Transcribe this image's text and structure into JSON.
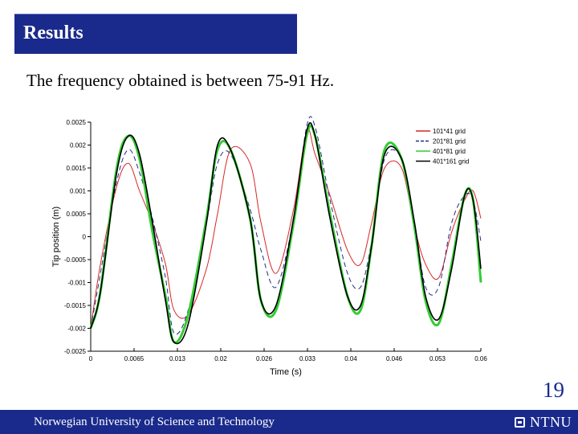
{
  "slide": {
    "title": "Results",
    "subtitle": "The frequency obtained is between 75-91 Hz.",
    "page_number": "19"
  },
  "footer": {
    "text": "Norwegian University of Science and Technology",
    "logo_text": "NTNU"
  },
  "colors": {
    "brand": "#1a2a8c",
    "text": "#000000",
    "background": "#ffffff"
  },
  "chart_data": {
    "type": "line",
    "title": "",
    "xlabel": "Time (s)",
    "ylabel": "Tip position (m)",
    "xlim": [
      0,
      0.06
    ],
    "ylim": [
      -0.0025,
      0.0025
    ],
    "x_ticks": [
      "0",
      "0.0065",
      "0.013",
      "0.02",
      "0.026",
      "0.033",
      "0.04",
      "0.046",
      "0.053",
      "0.06"
    ],
    "y_ticks": [
      "0.0025",
      "0.002",
      "0.0015",
      "0.001",
      "0.0005",
      "0",
      "-0.0005",
      "-0.001",
      "-0.0015",
      "-0.002",
      "-0.0025"
    ],
    "grid": false,
    "legend_position": "top-right",
    "x": [
      0,
      0.0015,
      0.004,
      0.0058,
      0.0075,
      0.0095,
      0.0115,
      0.0128,
      0.015,
      0.0178,
      0.0195,
      0.0215,
      0.0245,
      0.0262,
      0.0285,
      0.0312,
      0.0332,
      0.0345,
      0.0368,
      0.0395,
      0.0415,
      0.0432,
      0.0452,
      0.0478,
      0.0498,
      0.0515,
      0.0535,
      0.0555,
      0.0575,
      0.0588,
      0.06
    ],
    "series": [
      {
        "name": "101*41 grid",
        "color": "#d62728",
        "dash": "",
        "values": [
          -0.002,
          -0.0006,
          0.0011,
          0.0016,
          0.001,
          0.0003,
          -0.0006,
          -0.0016,
          -0.0017,
          -0.0007,
          0.0005,
          0.0019,
          0.0016,
          0.0003,
          -0.0008,
          0.0006,
          0.0023,
          0.0018,
          0.0009,
          -0.0003,
          -0.0006,
          0.0003,
          0.0015,
          0.0015,
          0.0002,
          -0.0006,
          -0.0009,
          0.0001,
          0.0008,
          0.001,
          0.0004
        ]
      },
      {
        "name": "201*81 grid",
        "color": "#1f2d8c",
        "dash": "6,4",
        "values": [
          -0.002,
          -0.0008,
          0.0012,
          0.0019,
          0.0014,
          0.0004,
          -0.0009,
          -0.0021,
          -0.0016,
          0.0003,
          0.0016,
          0.0018,
          0.0006,
          -0.0003,
          -0.0011,
          0.0004,
          0.0024,
          0.0024,
          0.0008,
          -0.0008,
          -0.0011,
          -0.0001,
          0.0017,
          0.0017,
          0.0003,
          -0.0011,
          -0.0011,
          0.0003,
          0.0009,
          0.0008,
          -0.0001
        ]
      },
      {
        "name": "401*81 grid",
        "color": "#33cc33",
        "dash": "",
        "values": [
          -0.002,
          -0.0012,
          0.0015,
          0.0022,
          0.0017,
          0.0001,
          -0.0013,
          -0.0023,
          -0.0017,
          0.0004,
          0.0019,
          0.0019,
          0.0004,
          -0.0014,
          -0.0016,
          0.0003,
          0.0022,
          0.0022,
          0.0005,
          -0.0013,
          -0.0016,
          -0.0002,
          0.0019,
          0.0017,
          0.0002,
          -0.0014,
          -0.0019,
          -0.0006,
          0.0009,
          0.0008,
          -0.001
        ]
      },
      {
        "name": "401*161 grid",
        "color": "#000000",
        "dash": "",
        "values": [
          -0.002,
          -0.0012,
          0.0014,
          0.0022,
          0.0018,
          0.0003,
          -0.0014,
          -0.0023,
          -0.0019,
          0.0003,
          0.002,
          0.0019,
          0.0004,
          -0.0014,
          -0.0015,
          0.0004,
          0.0023,
          0.0022,
          0.0004,
          -0.0013,
          -0.0015,
          -0.0002,
          0.0018,
          0.0017,
          0.0003,
          -0.0013,
          -0.0018,
          -0.0007,
          0.0009,
          0.0008,
          -0.0007
        ]
      }
    ]
  }
}
